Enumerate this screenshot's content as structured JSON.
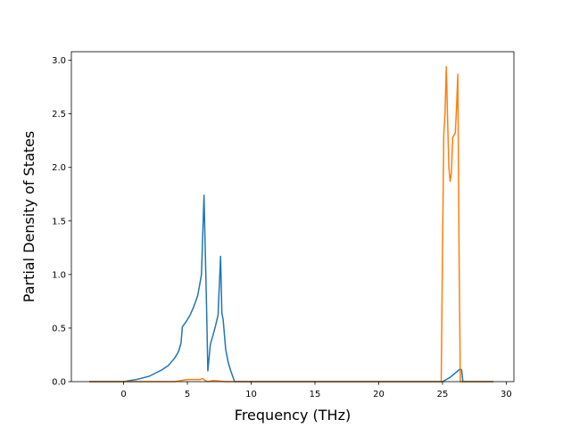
{
  "chart_data": {
    "type": "line",
    "xlabel": "Frequency (THz)",
    "ylabel": "Partial Density of States",
    "xlim": [
      -4.1,
      30.6
    ],
    "ylim": [
      0,
      3.08
    ],
    "xticks": [
      0,
      5,
      10,
      15,
      20,
      25,
      30
    ],
    "yticks": [
      0.0,
      0.5,
      1.0,
      1.5,
      2.0,
      2.5,
      3.0
    ],
    "grid": false,
    "legend": "none",
    "series": [
      {
        "color": "#1f77b4",
        "x": [
          -2.7,
          0.0,
          0.5,
          1.0,
          1.5,
          2.0,
          2.5,
          3.0,
          3.5,
          4.0,
          4.3,
          4.5,
          4.6,
          4.9,
          5.2,
          5.5,
          5.8,
          6.0,
          6.1,
          6.3,
          6.5,
          6.6,
          6.8,
          7.0,
          7.2,
          7.4,
          7.6,
          7.7,
          7.8,
          8.0,
          8.2,
          8.4,
          8.7,
          9.5,
          12.0,
          16.0,
          20.0,
          24.0,
          25.0,
          25.3,
          25.6,
          25.9,
          26.2,
          26.4,
          26.5,
          26.6,
          27.5,
          29.0
        ],
        "y": [
          0.0,
          0.0,
          0.01,
          0.02,
          0.035,
          0.05,
          0.08,
          0.11,
          0.15,
          0.22,
          0.28,
          0.36,
          0.51,
          0.56,
          0.62,
          0.7,
          0.8,
          0.93,
          1.0,
          1.74,
          0.7,
          0.1,
          0.35,
          0.43,
          0.52,
          0.62,
          1.17,
          0.64,
          0.58,
          0.3,
          0.18,
          0.1,
          0.0,
          0.0,
          0.0,
          0.0,
          0.0,
          0.0,
          0.0,
          0.02,
          0.04,
          0.07,
          0.1,
          0.12,
          0.11,
          0.0,
          0.0,
          0.0
        ]
      },
      {
        "color": "#ff7f0e",
        "x": [
          -2.7,
          0.0,
          2.0,
          4.0,
          5.0,
          6.0,
          6.2,
          6.4,
          6.6,
          7.0,
          8.0,
          9.0,
          12.0,
          16.0,
          20.0,
          24.0,
          24.9,
          25.0,
          25.1,
          25.2,
          25.3,
          25.4,
          25.5,
          25.6,
          25.7,
          25.8,
          25.9,
          26.0,
          26.1,
          26.2,
          26.3,
          26.4,
          26.5,
          26.6,
          27.5,
          29.0
        ],
        "y": [
          0.0,
          0.0,
          0.0,
          0.0,
          0.02,
          0.02,
          0.03,
          0.01,
          0.0,
          0.01,
          0.0,
          0.0,
          0.0,
          0.0,
          0.0,
          0.0,
          0.0,
          1.2,
          2.3,
          2.5,
          2.94,
          2.45,
          2.0,
          1.87,
          1.95,
          2.28,
          2.3,
          2.32,
          2.55,
          2.87,
          1.2,
          0.0,
          0.0,
          0.0,
          0.0,
          0.0
        ]
      }
    ]
  }
}
